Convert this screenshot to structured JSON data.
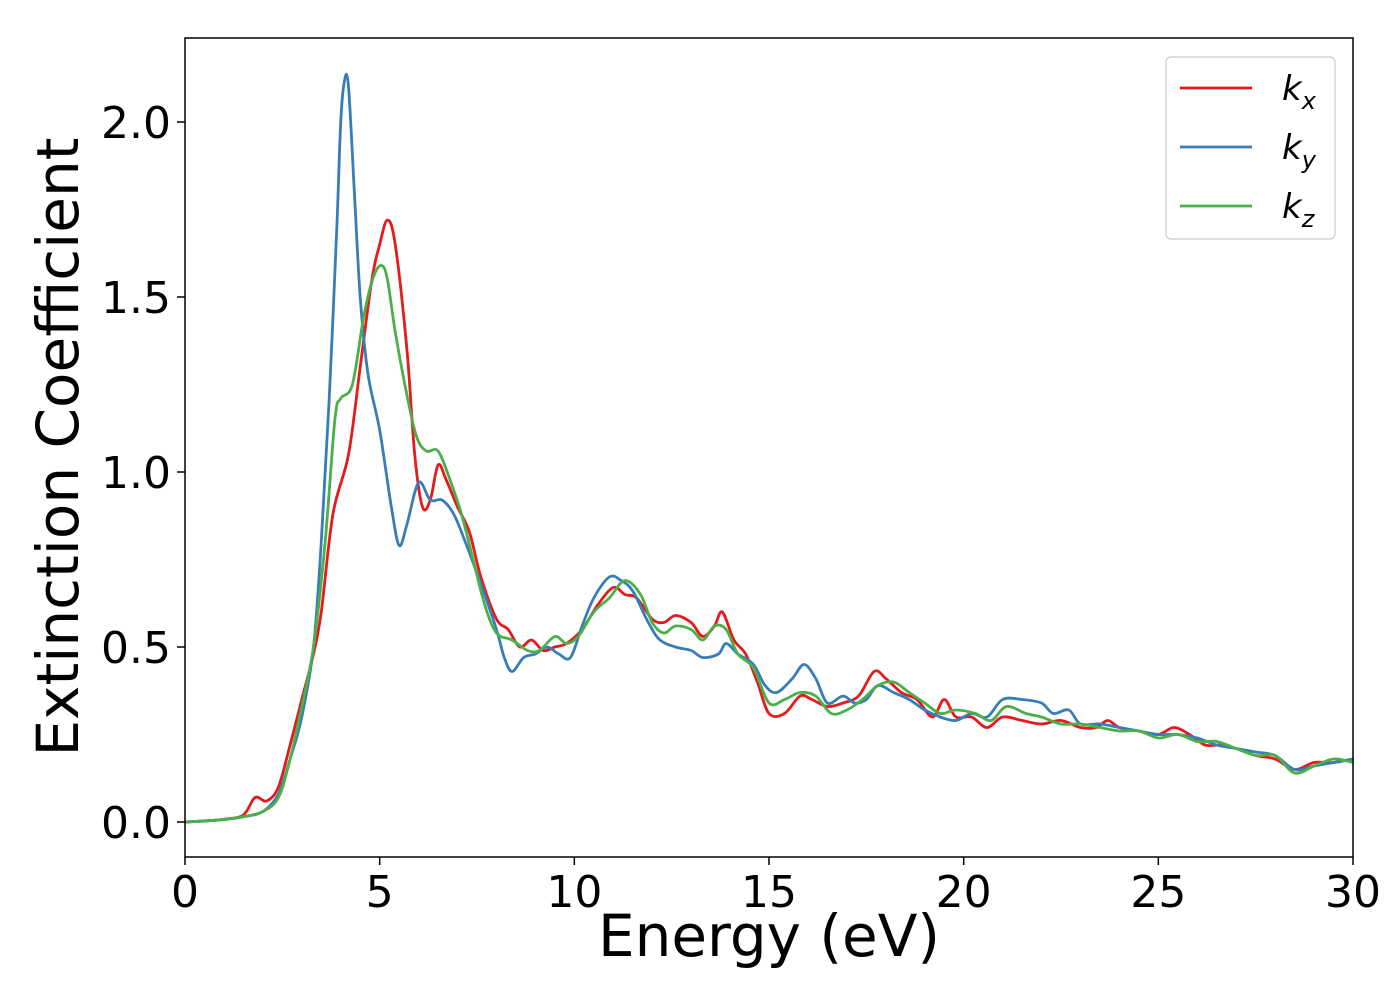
{
  "chart_data": {
    "type": "line",
    "title": "",
    "xlabel": "Energy (eV)",
    "ylabel": "Extinction Coefficient",
    "xlim": [
      0,
      30
    ],
    "ylim": [
      -0.1,
      2.24
    ],
    "xticks": [
      0,
      5,
      10,
      15,
      20,
      25,
      30
    ],
    "xtick_labels": [
      "0",
      "5",
      "10",
      "15",
      "20",
      "25",
      "30"
    ],
    "yticks": [
      0.0,
      0.5,
      1.0,
      1.5,
      2.0
    ],
    "ytick_labels": [
      "0.0",
      "0.5",
      "1.0",
      "1.5",
      "2.0"
    ],
    "grid": false,
    "legend_position": "top-right",
    "series": [
      {
        "name": "k",
        "subscript": "x",
        "color": "#e41a1c",
        "points": [
          [
            0,
            0
          ],
          [
            0.5,
            0.003
          ],
          [
            1,
            0.008
          ],
          [
            1.5,
            0.02
          ],
          [
            1.8,
            0.07
          ],
          [
            2.1,
            0.06
          ],
          [
            2.4,
            0.1
          ],
          [
            2.7,
            0.22
          ],
          [
            3,
            0.35
          ],
          [
            3.3,
            0.48
          ],
          [
            3.5,
            0.6
          ],
          [
            3.8,
            0.88
          ],
          [
            4.2,
            1.05
          ],
          [
            4.5,
            1.3
          ],
          [
            4.8,
            1.55
          ],
          [
            5.0,
            1.65
          ],
          [
            5.2,
            1.72
          ],
          [
            5.4,
            1.65
          ],
          [
            5.7,
            1.35
          ],
          [
            5.9,
            1.05
          ],
          [
            6.1,
            0.9
          ],
          [
            6.3,
            0.92
          ],
          [
            6.5,
            1.02
          ],
          [
            6.7,
            0.98
          ],
          [
            7.0,
            0.9
          ],
          [
            7.3,
            0.83
          ],
          [
            7.6,
            0.7
          ],
          [
            8.0,
            0.58
          ],
          [
            8.3,
            0.55
          ],
          [
            8.6,
            0.5
          ],
          [
            8.9,
            0.52
          ],
          [
            9.2,
            0.49
          ],
          [
            9.5,
            0.5
          ],
          [
            9.8,
            0.51
          ],
          [
            10.2,
            0.55
          ],
          [
            10.6,
            0.62
          ],
          [
            11.0,
            0.67
          ],
          [
            11.3,
            0.65
          ],
          [
            11.6,
            0.64
          ],
          [
            12.0,
            0.58
          ],
          [
            12.3,
            0.57
          ],
          [
            12.6,
            0.59
          ],
          [
            13.0,
            0.57
          ],
          [
            13.3,
            0.53
          ],
          [
            13.6,
            0.56
          ],
          [
            13.8,
            0.6
          ],
          [
            14.1,
            0.52
          ],
          [
            14.4,
            0.48
          ],
          [
            14.7,
            0.4
          ],
          [
            15.0,
            0.31
          ],
          [
            15.4,
            0.31
          ],
          [
            15.8,
            0.36
          ],
          [
            16.1,
            0.35
          ],
          [
            16.5,
            0.33
          ],
          [
            16.9,
            0.34
          ],
          [
            17.3,
            0.36
          ],
          [
            17.7,
            0.43
          ],
          [
            18.0,
            0.41
          ],
          [
            18.4,
            0.37
          ],
          [
            18.8,
            0.35
          ],
          [
            19.2,
            0.3
          ],
          [
            19.5,
            0.35
          ],
          [
            19.8,
            0.3
          ],
          [
            20.2,
            0.3
          ],
          [
            20.6,
            0.27
          ],
          [
            21.0,
            0.3
          ],
          [
            21.5,
            0.29
          ],
          [
            22.0,
            0.28
          ],
          [
            22.5,
            0.29
          ],
          [
            23.0,
            0.27
          ],
          [
            23.4,
            0.27
          ],
          [
            23.7,
            0.29
          ],
          [
            24.0,
            0.27
          ],
          [
            24.5,
            0.26
          ],
          [
            25.0,
            0.25
          ],
          [
            25.4,
            0.27
          ],
          [
            25.8,
            0.25
          ],
          [
            26.2,
            0.22
          ],
          [
            26.6,
            0.22
          ],
          [
            27.0,
            0.21
          ],
          [
            27.5,
            0.19
          ],
          [
            28.0,
            0.18
          ],
          [
            28.5,
            0.15
          ],
          [
            29.0,
            0.17
          ],
          [
            29.5,
            0.17
          ],
          [
            30.0,
            0.18
          ]
        ]
      },
      {
        "name": "k",
        "subscript": "y",
        "color": "#377eb8",
        "points": [
          [
            0,
            0
          ],
          [
            0.5,
            0.003
          ],
          [
            1,
            0.007
          ],
          [
            1.5,
            0.015
          ],
          [
            2.0,
            0.03
          ],
          [
            2.4,
            0.08
          ],
          [
            2.7,
            0.18
          ],
          [
            3.0,
            0.3
          ],
          [
            3.3,
            0.5
          ],
          [
            3.5,
            0.8
          ],
          [
            3.7,
            1.2
          ],
          [
            3.9,
            1.7
          ],
          [
            4.0,
            2.0
          ],
          [
            4.1,
            2.12
          ],
          [
            4.2,
            2.1
          ],
          [
            4.35,
            1.8
          ],
          [
            4.5,
            1.5
          ],
          [
            4.7,
            1.28
          ],
          [
            5.0,
            1.12
          ],
          [
            5.3,
            0.9
          ],
          [
            5.5,
            0.79
          ],
          [
            5.7,
            0.85
          ],
          [
            6.0,
            0.97
          ],
          [
            6.3,
            0.92
          ],
          [
            6.6,
            0.92
          ],
          [
            6.9,
            0.88
          ],
          [
            7.2,
            0.8
          ],
          [
            7.6,
            0.68
          ],
          [
            8.0,
            0.55
          ],
          [
            8.2,
            0.47
          ],
          [
            8.4,
            0.43
          ],
          [
            8.7,
            0.47
          ],
          [
            9.0,
            0.48
          ],
          [
            9.3,
            0.5
          ],
          [
            9.6,
            0.48
          ],
          [
            9.9,
            0.47
          ],
          [
            10.2,
            0.56
          ],
          [
            10.5,
            0.64
          ],
          [
            10.9,
            0.7
          ],
          [
            11.2,
            0.69
          ],
          [
            11.5,
            0.66
          ],
          [
            11.9,
            0.57
          ],
          [
            12.2,
            0.52
          ],
          [
            12.6,
            0.5
          ],
          [
            13.0,
            0.49
          ],
          [
            13.3,
            0.47
          ],
          [
            13.7,
            0.48
          ],
          [
            13.9,
            0.51
          ],
          [
            14.2,
            0.48
          ],
          [
            14.6,
            0.45
          ],
          [
            14.9,
            0.39
          ],
          [
            15.2,
            0.37
          ],
          [
            15.6,
            0.41
          ],
          [
            15.9,
            0.45
          ],
          [
            16.2,
            0.41
          ],
          [
            16.5,
            0.34
          ],
          [
            16.9,
            0.36
          ],
          [
            17.2,
            0.34
          ],
          [
            17.5,
            0.35
          ],
          [
            17.8,
            0.39
          ],
          [
            18.2,
            0.37
          ],
          [
            18.6,
            0.35
          ],
          [
            19.0,
            0.32
          ],
          [
            19.4,
            0.3
          ],
          [
            19.8,
            0.29
          ],
          [
            20.2,
            0.31
          ],
          [
            20.6,
            0.3
          ],
          [
            21.0,
            0.35
          ],
          [
            21.5,
            0.35
          ],
          [
            22.0,
            0.34
          ],
          [
            22.3,
            0.31
          ],
          [
            22.7,
            0.32
          ],
          [
            23.0,
            0.28
          ],
          [
            23.5,
            0.28
          ],
          [
            24.0,
            0.27
          ],
          [
            24.5,
            0.26
          ],
          [
            25.0,
            0.25
          ],
          [
            25.5,
            0.25
          ],
          [
            26.0,
            0.24
          ],
          [
            26.5,
            0.22
          ],
          [
            27.0,
            0.21
          ],
          [
            27.5,
            0.2
          ],
          [
            28.0,
            0.19
          ],
          [
            28.5,
            0.15
          ],
          [
            29.0,
            0.16
          ],
          [
            29.5,
            0.17
          ],
          [
            30.0,
            0.18
          ]
        ]
      },
      {
        "name": "k",
        "subscript": "z",
        "color": "#4daf4a",
        "points": [
          [
            0,
            0
          ],
          [
            0.5,
            0.003
          ],
          [
            1,
            0.007
          ],
          [
            1.5,
            0.015
          ],
          [
            2.0,
            0.03
          ],
          [
            2.4,
            0.07
          ],
          [
            2.7,
            0.18
          ],
          [
            3.0,
            0.33
          ],
          [
            3.3,
            0.5
          ],
          [
            3.6,
            0.8
          ],
          [
            3.85,
            1.15
          ],
          [
            4.0,
            1.21
          ],
          [
            4.3,
            1.25
          ],
          [
            4.6,
            1.45
          ],
          [
            4.85,
            1.56
          ],
          [
            5.05,
            1.59
          ],
          [
            5.2,
            1.55
          ],
          [
            5.4,
            1.4
          ],
          [
            5.7,
            1.22
          ],
          [
            5.95,
            1.1
          ],
          [
            6.2,
            1.06
          ],
          [
            6.5,
            1.06
          ],
          [
            6.8,
            0.98
          ],
          [
            7.1,
            0.88
          ],
          [
            7.4,
            0.75
          ],
          [
            7.7,
            0.62
          ],
          [
            8.0,
            0.54
          ],
          [
            8.4,
            0.52
          ],
          [
            8.8,
            0.49
          ],
          [
            9.1,
            0.49
          ],
          [
            9.5,
            0.53
          ],
          [
            9.8,
            0.51
          ],
          [
            10.1,
            0.53
          ],
          [
            10.5,
            0.6
          ],
          [
            10.9,
            0.64
          ],
          [
            11.3,
            0.69
          ],
          [
            11.7,
            0.65
          ],
          [
            12.0,
            0.57
          ],
          [
            12.3,
            0.54
          ],
          [
            12.6,
            0.56
          ],
          [
            13.0,
            0.55
          ],
          [
            13.3,
            0.52
          ],
          [
            13.6,
            0.56
          ],
          [
            13.9,
            0.55
          ],
          [
            14.2,
            0.48
          ],
          [
            14.6,
            0.44
          ],
          [
            15.0,
            0.34
          ],
          [
            15.4,
            0.35
          ],
          [
            15.8,
            0.37
          ],
          [
            16.2,
            0.36
          ],
          [
            16.6,
            0.31
          ],
          [
            17.0,
            0.32
          ],
          [
            17.4,
            0.35
          ],
          [
            17.8,
            0.39
          ],
          [
            18.2,
            0.4
          ],
          [
            18.6,
            0.37
          ],
          [
            19.0,
            0.34
          ],
          [
            19.4,
            0.31
          ],
          [
            19.8,
            0.32
          ],
          [
            20.3,
            0.31
          ],
          [
            20.7,
            0.29
          ],
          [
            21.1,
            0.33
          ],
          [
            21.6,
            0.31
          ],
          [
            22.0,
            0.3
          ],
          [
            22.5,
            0.28
          ],
          [
            23.0,
            0.28
          ],
          [
            23.5,
            0.27
          ],
          [
            24.0,
            0.26
          ],
          [
            24.5,
            0.26
          ],
          [
            25.0,
            0.24
          ],
          [
            25.5,
            0.25
          ],
          [
            26.0,
            0.23
          ],
          [
            26.5,
            0.23
          ],
          [
            27.0,
            0.21
          ],
          [
            27.5,
            0.19
          ],
          [
            28.0,
            0.19
          ],
          [
            28.5,
            0.14
          ],
          [
            29.0,
            0.16
          ],
          [
            29.5,
            0.18
          ],
          [
            30.0,
            0.17
          ]
        ]
      }
    ]
  }
}
